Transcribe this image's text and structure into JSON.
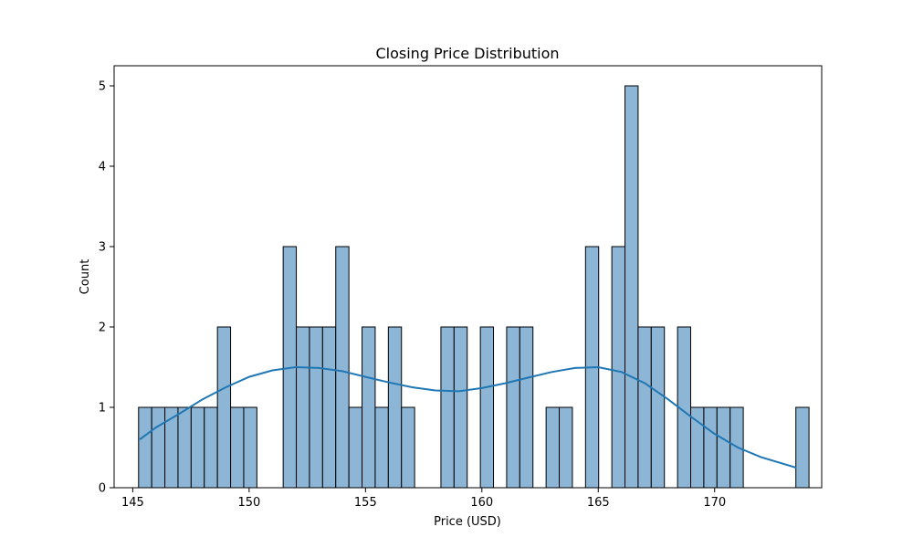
{
  "chart_data": {
    "type": "bar",
    "title": "Closing Price Distribution",
    "xlabel": "Price (USD)",
    "ylabel": "Count",
    "xlim": [
      144.2,
      174.6
    ],
    "ylim": [
      0,
      5.25
    ],
    "xticks": [
      "145",
      "150",
      "155",
      "160",
      "165",
      "170"
    ],
    "yticks": [
      "0",
      "1",
      "2",
      "3",
      "4",
      "5"
    ],
    "grid": false,
    "legend": "none",
    "bin_start": 145.25,
    "bin_width": 0.5648,
    "counts": [
      1,
      1,
      1,
      1,
      1,
      1,
      2,
      1,
      1,
      0,
      0,
      3,
      2,
      2,
      2,
      3,
      1,
      2,
      1,
      2,
      1,
      0,
      0,
      2,
      2,
      0,
      2,
      0,
      2,
      2,
      0,
      1,
      1,
      0,
      3,
      0,
      3,
      5,
      2,
      2,
      0,
      2,
      1,
      1,
      1,
      1,
      0,
      0,
      0,
      0,
      1
    ],
    "kde": {
      "x": [
        145.3,
        146.0,
        147.0,
        148.0,
        149.0,
        150.0,
        151.0,
        152.0,
        153.0,
        154.0,
        155.0,
        156.0,
        157.0,
        158.0,
        159.0,
        160.0,
        161.0,
        162.0,
        163.0,
        164.0,
        165.0,
        166.0,
        167.0,
        168.0,
        169.0,
        170.0,
        171.0,
        172.0,
        173.5
      ],
      "y": [
        0.6,
        0.75,
        0.92,
        1.1,
        1.25,
        1.38,
        1.46,
        1.5,
        1.49,
        1.45,
        1.38,
        1.31,
        1.25,
        1.21,
        1.2,
        1.24,
        1.3,
        1.37,
        1.44,
        1.49,
        1.5,
        1.44,
        1.3,
        1.1,
        0.88,
        0.67,
        0.5,
        0.38,
        0.25
      ]
    },
    "colors": {
      "bar_fill": "#8db5d6",
      "bar_edge": "#000000",
      "kde_line": "#1f77b4"
    }
  }
}
